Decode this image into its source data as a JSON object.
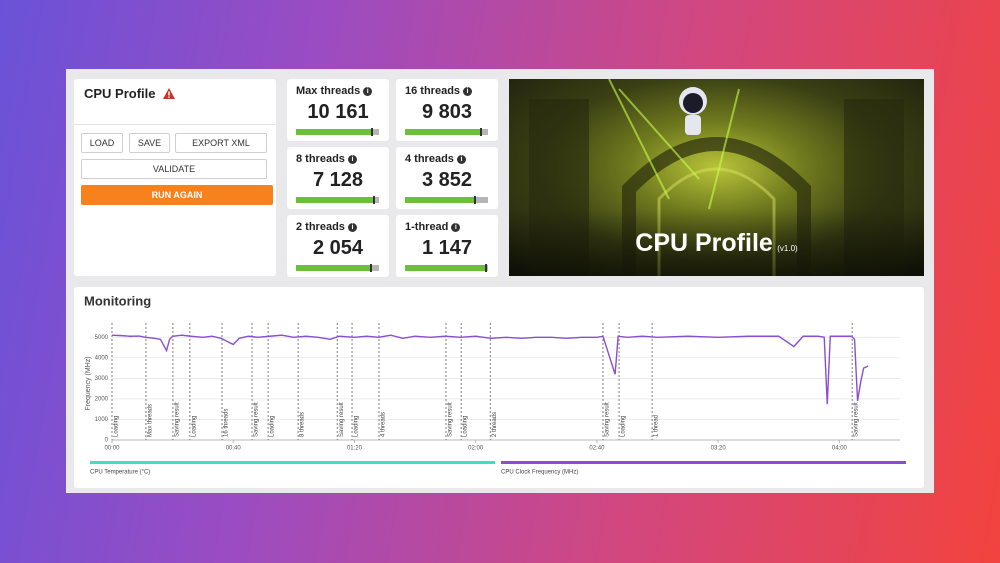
{
  "header": {
    "title": "CPU Profile"
  },
  "buttons": [
    "LOAD",
    "SAVE",
    "EXPORT XML",
    "VALIDATE",
    "RUN AGAIN"
  ],
  "scores": [
    {
      "label": "Max threads",
      "score": "10 161"
    },
    {
      "label": "16 threads",
      "score": "9 803"
    },
    {
      "label": "8 threads",
      "score": "7 128"
    },
    {
      "label": "4 threads",
      "score": "3 852"
    },
    {
      "label": "2 threads",
      "score": "2 054"
    },
    {
      "label": "1-thread",
      "score": "1 147"
    }
  ],
  "banner": {
    "title": "CPU Profile",
    "version": "(v1.0)"
  },
  "chart_data": {
    "type": "line",
    "title": "Monitoring",
    "ylabel": "Frequency (MHz)",
    "x": [
      0,
      3,
      6,
      9,
      11,
      14,
      16,
      18,
      19,
      20,
      23,
      26,
      30,
      33,
      36,
      40,
      42,
      45,
      48,
      52,
      56,
      60,
      64,
      68,
      72,
      75,
      80,
      84,
      88,
      92,
      96,
      100,
      105,
      110,
      115,
      120,
      125,
      130,
      135,
      140,
      145,
      150,
      155,
      160,
      162,
      166,
      167,
      170,
      175,
      180,
      190,
      200,
      210,
      220,
      225,
      228,
      233,
      235,
      236,
      237,
      240,
      244,
      245,
      246,
      247,
      248,
      249.5
    ],
    "xlim": [
      0,
      260
    ],
    "xticks": [
      {
        "value": 0,
        "label": "00:00"
      },
      {
        "value": 40,
        "label": "00:40"
      },
      {
        "value": 80,
        "label": "01:20"
      },
      {
        "value": 120,
        "label": "02:00"
      },
      {
        "value": 160,
        "label": "02:40"
      },
      {
        "value": 200,
        "label": "03:20"
      },
      {
        "value": 240,
        "label": "04:00"
      }
    ],
    "ylim": [
      0,
      5500
    ],
    "yticks": [
      0,
      1000,
      2000,
      3000,
      4000,
      5000
    ],
    "grid": true,
    "series": [
      {
        "name": "CPU Temperature (°C)",
        "color": "#3fe0c2",
        "values": [
          null,
          null,
          null,
          null,
          null,
          null,
          null,
          null,
          null,
          null,
          null,
          null,
          null,
          null,
          null,
          null,
          null,
          null,
          null,
          null,
          null,
          null,
          null,
          null,
          null,
          null,
          null,
          null,
          null,
          null,
          null,
          null,
          null,
          null,
          null,
          null,
          null,
          null,
          null,
          null,
          null,
          null,
          null,
          null,
          null,
          null,
          null,
          null,
          null,
          null,
          null,
          null,
          null,
          null,
          null,
          null,
          null,
          null,
          null,
          null,
          null,
          null,
          null,
          null,
          null,
          null,
          null
        ]
      },
      {
        "name": "CPU Clock Frequency (MHz)",
        "color": "#8a4fd0",
        "values": [
          5100,
          5080,
          5050,
          5060,
          5000,
          4950,
          4900,
          4350,
          4900,
          5050,
          5100,
          5050,
          5000,
          5050,
          4950,
          4650,
          4950,
          5050,
          5000,
          5050,
          5100,
          5000,
          5050,
          5000,
          4900,
          5050,
          5000,
          5050,
          5000,
          5100,
          4950,
          5050,
          5000,
          5050,
          5000,
          5050,
          4950,
          5000,
          4950,
          5000,
          5000,
          4950,
          5000,
          5000,
          5050,
          3200,
          5050,
          5000,
          5050,
          5000,
          5050,
          5000,
          5050,
          5050,
          4550,
          5050,
          5050,
          5000,
          1750,
          5050,
          5050,
          5050,
          4900,
          1900,
          2800,
          3500,
          3600
        ]
      }
    ],
    "annotations": [
      {
        "x": 0,
        "label": "Loading"
      },
      {
        "x": 11.2,
        "label": "Max threads"
      },
      {
        "x": 20.1,
        "label": "Saving result"
      },
      {
        "x": 25.7,
        "label": "Loading"
      },
      {
        "x": 36.3,
        "label": "16 threads"
      },
      {
        "x": 46.2,
        "label": "Saving result"
      },
      {
        "x": 51.5,
        "label": "Loading"
      },
      {
        "x": 61.4,
        "label": "8 threads"
      },
      {
        "x": 74.3,
        "label": "Saving result"
      },
      {
        "x": 79.2,
        "label": "Loading"
      },
      {
        "x": 88.1,
        "label": "4 threads"
      },
      {
        "x": 110.2,
        "label": "Saving result"
      },
      {
        "x": 115.2,
        "label": "Loading"
      },
      {
        "x": 124.8,
        "label": "2 threads"
      },
      {
        "x": 162.0,
        "label": "Saving result"
      },
      {
        "x": 167.3,
        "label": "Loading"
      },
      {
        "x": 178.2,
        "label": "1 thread"
      },
      {
        "x": 244.2,
        "label": "Saving result"
      }
    ]
  }
}
